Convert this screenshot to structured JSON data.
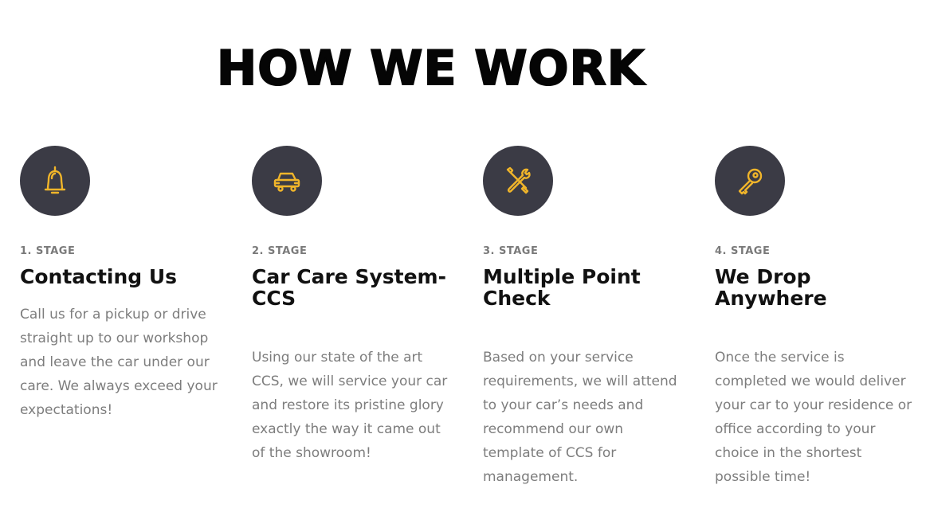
{
  "section": {
    "title": "HOW WE WORK"
  },
  "colors": {
    "circle_bg": "#3b3b45",
    "icon_accent": "#f0b52a",
    "title_text": "#050505",
    "body_text": "#7d7d7d"
  },
  "stages": [
    {
      "number": "1. STAGE",
      "title": "Contacting Us",
      "text": "Call us for a pickup or drive straight up to our workshop and leave the car under our care. We always exceed your expectations!",
      "icon": "bell-icon"
    },
    {
      "number": "2. STAGE",
      "title": "Car Care System-CCS",
      "text": "Using our state of the art CCS, we will service your car and restore its pristine glory exactly the way it came out of the showroom!",
      "icon": "car-icon"
    },
    {
      "number": "3. STAGE",
      "title": "Multiple Point Check",
      "text": "Based on your service requirements, we will attend to your car’s needs and recommend our own template of CCS for management.",
      "icon": "tools-icon"
    },
    {
      "number": "4. STAGE",
      "title": "We Drop Anywhere",
      "text": "Once the service is completed we would deliver your car to your residence or office according to your choice in the shortest possible time!",
      "icon": "key-icon"
    }
  ]
}
